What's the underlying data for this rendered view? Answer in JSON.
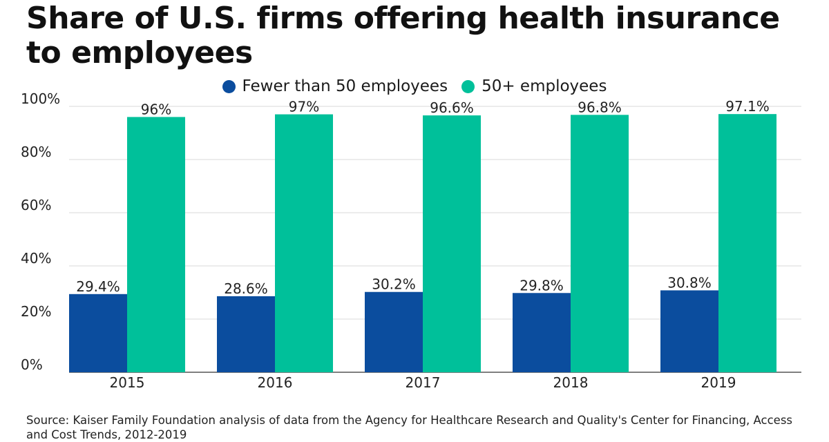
{
  "title": "Share of U.S. firms offering health insurance to employees",
  "source": "Source: Kaiser Family Foundation analysis of data from the Agency for Healthcare Research and Quality's Center for Financing, Access and Cost Trends, 2012-2019",
  "colors": {
    "series_small": "#0b4d9e",
    "series_large": "#00c09a",
    "grid": "#d9d9d9",
    "axis": "#555555"
  },
  "chart_data": {
    "type": "bar",
    "categories": [
      "2015",
      "2016",
      "2017",
      "2018",
      "2019"
    ],
    "series": [
      {
        "name": "Fewer than 50 employees",
        "values": [
          29.4,
          28.6,
          30.2,
          29.8,
          30.8
        ],
        "labels": [
          "29.4%",
          "28.6%",
          "30.2%",
          "29.8%",
          "30.8%"
        ]
      },
      {
        "name": "50+ employees",
        "values": [
          96,
          97,
          96.6,
          96.8,
          97.1
        ],
        "labels": [
          "96%",
          "97%",
          "96.6%",
          "96.8%",
          "97.1%"
        ]
      }
    ],
    "yticks": [
      "0%",
      "20%",
      "40%",
      "60%",
      "80%",
      "100%"
    ],
    "ylim": [
      0,
      100
    ],
    "grid": true,
    "legend": "top-center"
  }
}
